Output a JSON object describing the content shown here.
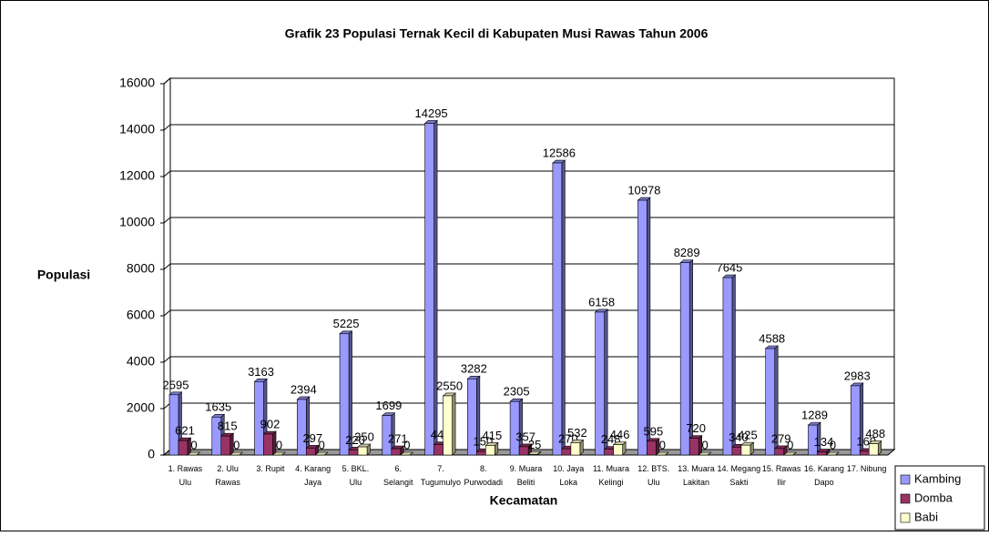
{
  "chart_data": {
    "type": "bar3d",
    "title": "Grafik 23 Populasi Ternak Kecil di Kabupaten Musi Rawas Tahun 2006",
    "y_label": "Populasi",
    "x_label": "Kecamatan",
    "categories": [
      "1. Rawas Ulu",
      "2. Ulu Rawas",
      "3. Rupit",
      "4. Karang Jaya",
      "5. BKL. Ulu",
      "6. Selangit",
      "7. Tugumulyo",
      "8. Purwodadi",
      "9. Muara Beliti",
      "10. Jaya Loka",
      "11. Muara Kelingi",
      "12. BTS. Ulu",
      "13. Muara Lakitan",
      "14. Megang Sakti",
      "15. Rawas Ilir",
      "16. Karang Dapo",
      "17. Nibung"
    ],
    "series": [
      {
        "name": "Kambing",
        "color": "#9999ff",
        "values": [
          2595,
          1635,
          3163,
          2394,
          5225,
          1699,
          14295,
          3282,
          2305,
          12586,
          6158,
          10978,
          8289,
          7645,
          4588,
          1289,
          2983
        ]
      },
      {
        "name": "Domba",
        "color": "#993366",
        "values": [
          621,
          815,
          902,
          297,
          220,
          271,
          443,
          150,
          357,
          270,
          248,
          595,
          720,
          340,
          279,
          134,
          160
        ]
      },
      {
        "name": "Babi",
        "color": "#ffffcc",
        "values": [
          0,
          0,
          0,
          0,
          350,
          0,
          2550,
          415,
          25,
          532,
          446,
          0,
          0,
          425,
          0,
          0,
          488
        ]
      }
    ],
    "ylim": [
      0,
      16000
    ],
    "yticks": [
      0,
      2000,
      4000,
      6000,
      8000,
      10000,
      12000,
      14000,
      16000
    ],
    "grid": true
  }
}
